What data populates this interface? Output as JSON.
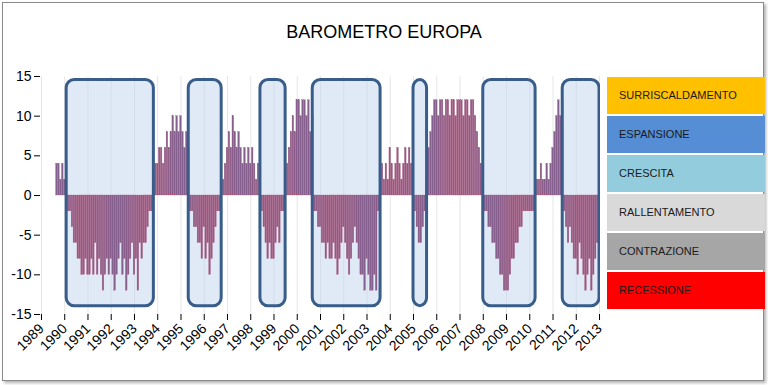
{
  "chart_data": {
    "type": "bar",
    "title": "BAROMETRO EUROPA",
    "categories": [
      "1989",
      null,
      null,
      null,
      null,
      null,
      null,
      null,
      null,
      null,
      null,
      null,
      "1990",
      null,
      null,
      null,
      null,
      null,
      null,
      null,
      null,
      null,
      null,
      null,
      "1991",
      null,
      null,
      null,
      null,
      null,
      null,
      null,
      null,
      null,
      null,
      null,
      "1992",
      null,
      null,
      null,
      null,
      null,
      null,
      null,
      null,
      null,
      null,
      null,
      "1993",
      null,
      null,
      null,
      null,
      null,
      null,
      null,
      null,
      null,
      null,
      null,
      "1994",
      null,
      null,
      null,
      null,
      null,
      null,
      null,
      null,
      null,
      null,
      null,
      "1995",
      null,
      null,
      null,
      null,
      null,
      null,
      null,
      null,
      null,
      null,
      null,
      "1996",
      null,
      null,
      null,
      null,
      null,
      null,
      null,
      null,
      null,
      null,
      null,
      "1997",
      null,
      null,
      null,
      null,
      null,
      null,
      null,
      null,
      null,
      null,
      null,
      "1998",
      null,
      null,
      null,
      null,
      null,
      null,
      null,
      null,
      null,
      null,
      null,
      "1999",
      null,
      null,
      null,
      null,
      null,
      null,
      null,
      null,
      null,
      null,
      null,
      "2000",
      null,
      null,
      null,
      null,
      null,
      null,
      null,
      null,
      null,
      null,
      null,
      "2001",
      null,
      null,
      null,
      null,
      null,
      null,
      null,
      null,
      null,
      null,
      null,
      "2002",
      null,
      null,
      null,
      null,
      null,
      null,
      null,
      null,
      null,
      null,
      null,
      "2003",
      null,
      null,
      null,
      null,
      null,
      null,
      null,
      null,
      null,
      null,
      null,
      "2004",
      null,
      null,
      null,
      null,
      null,
      null,
      null,
      null,
      null,
      null,
      null,
      "2005",
      null,
      null,
      null,
      null,
      null,
      null,
      null,
      null,
      null,
      null,
      null,
      "2006",
      null,
      null,
      null,
      null,
      null,
      null,
      null,
      null,
      null,
      null,
      null,
      "2007",
      null,
      null,
      null,
      null,
      null,
      null,
      null,
      null,
      null,
      null,
      null,
      "2008",
      null,
      null,
      null,
      null,
      null,
      null,
      null,
      null,
      null,
      null,
      null,
      "2009",
      null,
      null,
      null,
      null,
      null,
      null,
      null,
      null,
      null,
      null,
      null,
      "2010",
      null,
      null,
      null,
      null,
      null,
      null,
      null,
      null,
      null,
      null,
      null,
      "2011",
      null,
      null,
      null,
      null,
      null,
      null,
      null,
      null,
      null,
      null,
      null,
      "2012",
      null,
      null,
      null,
      null,
      null,
      null,
      null,
      null,
      null,
      null,
      null,
      "2013"
    ],
    "values": [
      null,
      null,
      null,
      null,
      null,
      null,
      null,
      null,
      4,
      4,
      2,
      4,
      2,
      4,
      -2,
      -2,
      -4,
      -6,
      -6,
      -8,
      -8,
      -10,
      -10,
      -8,
      -10,
      -10,
      -8,
      -10,
      -6,
      -10,
      -8,
      -10,
      -12,
      -10,
      -8,
      -10,
      -8,
      -10,
      -12,
      -10,
      -8,
      -6,
      -10,
      -8,
      -12,
      -10,
      -8,
      -6,
      -10,
      -8,
      -12,
      -6,
      -8,
      -6,
      -6,
      -4,
      -2,
      -2,
      2,
      4,
      4,
      6,
      6,
      4,
      6,
      8,
      6,
      8,
      10,
      8,
      10,
      8,
      10,
      8,
      6,
      8,
      6,
      -2,
      -2,
      -4,
      -4,
      -6,
      -6,
      -8,
      -4,
      -8,
      -6,
      -10,
      -8,
      -6,
      -4,
      -2,
      -2,
      2,
      2,
      4,
      6,
      8,
      6,
      10,
      8,
      6,
      8,
      6,
      4,
      6,
      4,
      6,
      4,
      6,
      4,
      2,
      4,
      2,
      -2,
      -4,
      -6,
      -8,
      -6,
      -8,
      -8,
      -6,
      -4,
      -6,
      -2,
      -2,
      2,
      4,
      6,
      8,
      10,
      8,
      12,
      12,
      10,
      12,
      12,
      10,
      12,
      8,
      10,
      -2,
      -2,
      -4,
      -4,
      -6,
      -6,
      -8,
      -6,
      -8,
      -8,
      -6,
      -8,
      -10,
      -8,
      -6,
      -4,
      -6,
      -8,
      -10,
      -8,
      -6,
      -4,
      -6,
      -8,
      -10,
      -10,
      -12,
      -8,
      -10,
      -12,
      -12,
      -10,
      -12,
      -2,
      2,
      4,
      2,
      4,
      2,
      6,
      4,
      2,
      4,
      6,
      4,
      2,
      4,
      6,
      4,
      6,
      4,
      2,
      -2,
      -4,
      -6,
      -6,
      -4,
      -2,
      2,
      6,
      8,
      10,
      12,
      12,
      10,
      12,
      12,
      10,
      12,
      12,
      10,
      12,
      12,
      10,
      12,
      12,
      12,
      10,
      12,
      12,
      10,
      12,
      12,
      10,
      8,
      6,
      4,
      2,
      -2,
      -2,
      -4,
      -4,
      -6,
      -6,
      -8,
      -8,
      -10,
      -10,
      -12,
      -12,
      -12,
      -10,
      -8,
      -8,
      -6,
      -6,
      -4,
      -4,
      -2,
      -2,
      -2,
      -2,
      -2,
      -2,
      2,
      2,
      2,
      4,
      2,
      2,
      4,
      2,
      4,
      6,
      8,
      10,
      12,
      10,
      12,
      -2,
      -4,
      -6,
      -4,
      -6,
      -8,
      -8,
      -10,
      -6,
      -8,
      -10,
      -12,
      -10,
      -8,
      -12,
      -10,
      -8,
      -6,
      null
    ],
    "color": "#85608f",
    "ylim": [
      -15,
      15
    ],
    "yticks": [
      -15,
      -10,
      -5,
      0,
      5,
      10,
      15
    ],
    "grid": true,
    "legend_entries": [
      {
        "name": "SURRISCALDAMENTO",
        "color": "#ffc000"
      },
      {
        "name": "ESPANSIONE",
        "color": "#558ed5"
      },
      {
        "name": "CRESCITA",
        "color": "#93cddd"
      },
      {
        "name": "RALLENTAMENTO",
        "color": "#d9d9d9"
      },
      {
        "name": "CONTRAZIONE",
        "color": "#a6a6a6"
      },
      {
        "name": "RECESSIONE",
        "color": "#ff0000"
      }
    ]
  }
}
